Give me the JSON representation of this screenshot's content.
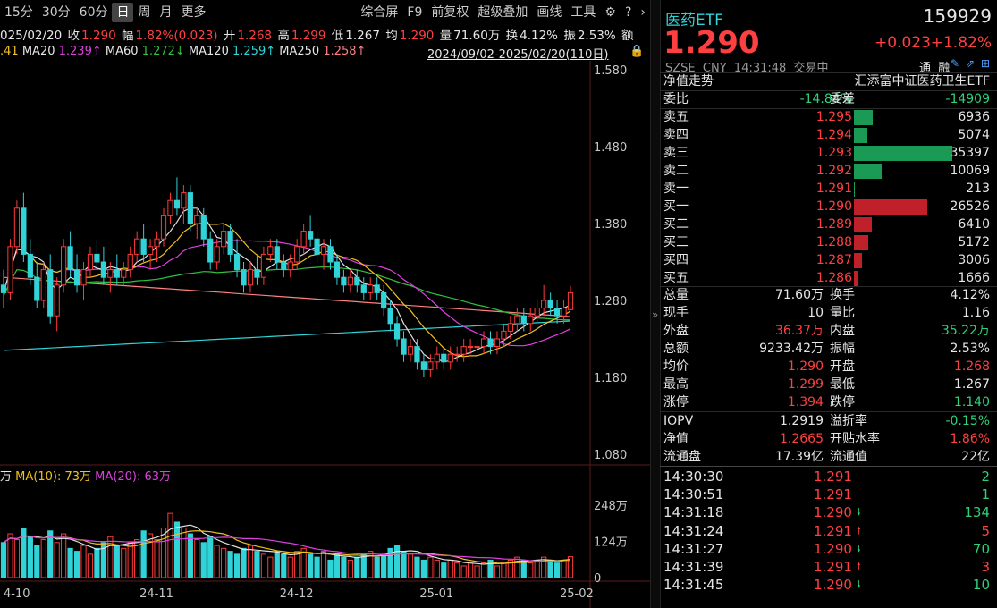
{
  "toolbar": {
    "periods": [
      "15分",
      "30分",
      "60分",
      "日",
      "周",
      "月",
      "更多"
    ],
    "active": "日",
    "tools": [
      "综合屏",
      "F9",
      "前复权",
      "超级叠加",
      "画线",
      "工具"
    ]
  },
  "ohlc": {
    "date": "025/02/20",
    "close_label": "收",
    "close": "1.290",
    "amp_label": "幅",
    "amp": "1.82%(0.023)",
    "open_label": "开",
    "open": "1.268",
    "high_label": "高",
    "high": "1.299",
    "low_label": "低",
    "low": "1.267",
    "avg_label": "均",
    "avg": "1.290",
    "vol_label": "量",
    "vol": "71.60万",
    "turn_label": "换",
    "turn": "4.12%",
    "swing_label": "振",
    "swing": "2.53%",
    "extra": "额"
  },
  "ma": {
    "ma10": ".41",
    "ma20_label": "MA20",
    "ma20": "1.239↑",
    "ma60_label": "MA60",
    "ma60": "1.272↓",
    "ma120_label": "MA120",
    "ma120": "1.259↑",
    "ma250_label": "MA250",
    "ma250": "1.258↑",
    "range": "2024/09/02-2025/02/20(110日)",
    "colors": {
      "ma5": "#e0e0e0",
      "ma10": "#f0c020",
      "ma20": "#e040e0",
      "ma60": "#30c040",
      "ma120": "#2fd3d8",
      "ma250": "#ff8080"
    }
  },
  "price_axis": [
    "1.580",
    "1.480",
    "1.380",
    "1.280",
    "1.180",
    "1.080"
  ],
  "vol_axis": [
    "248万",
    "124万",
    "0"
  ],
  "vol_legend": {
    "prefix": "万",
    "ma10": "MA(10): 73万",
    "ma20": "MA(20): 63万"
  },
  "date_axis": [
    "4-10",
    "24-11",
    "24-12",
    "25-01",
    "25-02"
  ],
  "header": {
    "name": "医药ETF",
    "code": "159929",
    "price": "1.290",
    "change": "+0.023",
    "pct": "+1.82%",
    "meta": "SZSE  CNY  14:31:48  交易中",
    "tags": "通  融"
  },
  "nav_row": {
    "left": "净值走势",
    "right": "汇添富中证医药卫生ETF"
  },
  "ratio": {
    "label1": "委比",
    "v1": "-14.84%",
    "label2": "委差",
    "v2": "-14909"
  },
  "asks": [
    {
      "label": "卖五",
      "price": "1.295",
      "vol": "6936",
      "w": 21
    },
    {
      "label": "卖四",
      "price": "1.294",
      "vol": "5074",
      "w": 15
    },
    {
      "label": "卖三",
      "price": "1.293",
      "vol": "35397",
      "w": 110
    },
    {
      "label": "卖二",
      "price": "1.292",
      "vol": "10069",
      "w": 31
    },
    {
      "label": "卖一",
      "price": "1.291",
      "vol": "213",
      "w": 1
    }
  ],
  "bids": [
    {
      "label": "买一",
      "price": "1.290",
      "vol": "26526",
      "w": 82
    },
    {
      "label": "买二",
      "price": "1.289",
      "vol": "6410",
      "w": 20
    },
    {
      "label": "买三",
      "price": "1.288",
      "vol": "5172",
      "w": 16
    },
    {
      "label": "买四",
      "price": "1.287",
      "vol": "3006",
      "w": 9
    },
    {
      "label": "买五",
      "price": "1.286",
      "vol": "1666",
      "w": 5
    }
  ],
  "quote": [
    [
      "总量",
      "71.60万",
      "w",
      "换手",
      "4.12%",
      "w"
    ],
    [
      "现手",
      "10",
      "w",
      "量比",
      "1.16",
      "w"
    ],
    [
      "外盘",
      "36.37万",
      "r",
      "内盘",
      "35.22万",
      "g"
    ],
    [
      "总额",
      "9233.42万",
      "w",
      "振幅",
      "2.53%",
      "w"
    ],
    [
      "均价",
      "1.290",
      "r",
      "开盘",
      "1.268",
      "r"
    ],
    [
      "最高",
      "1.299",
      "r",
      "最低",
      "1.267",
      "w"
    ],
    [
      "涨停",
      "1.394",
      "r",
      "跌停",
      "1.140",
      "g"
    ]
  ],
  "fund": [
    [
      "IOPV",
      "1.2919",
      "w",
      "溢折率",
      "-0.15%",
      "g"
    ],
    [
      "净值",
      "1.2665",
      "r",
      "开贴水率",
      "1.86%",
      "r"
    ],
    [
      "流通盘",
      "17.39亿",
      "w",
      "流通值",
      "22亿",
      "w"
    ]
  ],
  "ticks": [
    {
      "time": "14:30:30",
      "price": "1.291",
      "dir": "",
      "vol": "2",
      "vc": "g"
    },
    {
      "time": "14:30:51",
      "price": "1.291",
      "dir": "",
      "vol": "1",
      "vc": "g"
    },
    {
      "time": "14:31:18",
      "price": "1.290",
      "dir": "down",
      "vol": "134",
      "vc": "g"
    },
    {
      "time": "14:31:24",
      "price": "1.291",
      "dir": "up",
      "vol": "5",
      "vc": "r"
    },
    {
      "time": "14:31:27",
      "price": "1.290",
      "dir": "down",
      "vol": "70",
      "vc": "g"
    },
    {
      "time": "14:31:39",
      "price": "1.291",
      "dir": "up",
      "vol": "3",
      "vc": "r"
    },
    {
      "time": "14:31:45",
      "price": "1.290",
      "dir": "down",
      "vol": "10",
      "vc": "g"
    }
  ],
  "chart_data": {
    "type": "candlestick",
    "ylim": [
      1.08,
      1.58
    ],
    "candles": [
      [
        1.3,
        1.32,
        1.27,
        1.29
      ],
      [
        1.29,
        1.36,
        1.28,
        1.35
      ],
      [
        1.35,
        1.41,
        1.34,
        1.4
      ],
      [
        1.4,
        1.42,
        1.33,
        1.34
      ],
      [
        1.34,
        1.36,
        1.3,
        1.31
      ],
      [
        1.31,
        1.33,
        1.27,
        1.28
      ],
      [
        1.28,
        1.33,
        1.27,
        1.32
      ],
      [
        1.32,
        1.34,
        1.25,
        1.26
      ],
      [
        1.26,
        1.31,
        1.24,
        1.3
      ],
      [
        1.3,
        1.36,
        1.29,
        1.35
      ],
      [
        1.35,
        1.37,
        1.31,
        1.32
      ],
      [
        1.32,
        1.34,
        1.29,
        1.3
      ],
      [
        1.3,
        1.33,
        1.28,
        1.32
      ],
      [
        1.32,
        1.35,
        1.31,
        1.34
      ],
      [
        1.34,
        1.36,
        1.32,
        1.33
      ],
      [
        1.33,
        1.35,
        1.3,
        1.31
      ],
      [
        1.31,
        1.33,
        1.29,
        1.32
      ],
      [
        1.32,
        1.34,
        1.3,
        1.31
      ],
      [
        1.31,
        1.33,
        1.3,
        1.32
      ],
      [
        1.32,
        1.35,
        1.31,
        1.34
      ],
      [
        1.34,
        1.37,
        1.33,
        1.36
      ],
      [
        1.36,
        1.38,
        1.33,
        1.34
      ],
      [
        1.34,
        1.36,
        1.32,
        1.35
      ],
      [
        1.35,
        1.37,
        1.33,
        1.36
      ],
      [
        1.36,
        1.4,
        1.35,
        1.39
      ],
      [
        1.39,
        1.42,
        1.38,
        1.41
      ],
      [
        1.41,
        1.44,
        1.39,
        1.4
      ],
      [
        1.4,
        1.43,
        1.38,
        1.42
      ],
      [
        1.42,
        1.43,
        1.37,
        1.38
      ],
      [
        1.38,
        1.4,
        1.36,
        1.39
      ],
      [
        1.39,
        1.4,
        1.35,
        1.36
      ],
      [
        1.36,
        1.37,
        1.32,
        1.33
      ],
      [
        1.33,
        1.36,
        1.32,
        1.35
      ],
      [
        1.35,
        1.38,
        1.34,
        1.37
      ],
      [
        1.37,
        1.38,
        1.33,
        1.34
      ],
      [
        1.34,
        1.36,
        1.31,
        1.32
      ],
      [
        1.32,
        1.33,
        1.29,
        1.3
      ],
      [
        1.3,
        1.33,
        1.29,
        1.32
      ],
      [
        1.32,
        1.34,
        1.3,
        1.31
      ],
      [
        1.31,
        1.35,
        1.3,
        1.34
      ],
      [
        1.34,
        1.36,
        1.33,
        1.35
      ],
      [
        1.35,
        1.36,
        1.32,
        1.33
      ],
      [
        1.33,
        1.34,
        1.31,
        1.32
      ],
      [
        1.32,
        1.34,
        1.31,
        1.33
      ],
      [
        1.33,
        1.36,
        1.32,
        1.35
      ],
      [
        1.35,
        1.38,
        1.34,
        1.37
      ],
      [
        1.37,
        1.39,
        1.35,
        1.36
      ],
      [
        1.36,
        1.37,
        1.33,
        1.34
      ],
      [
        1.34,
        1.36,
        1.32,
        1.35
      ],
      [
        1.35,
        1.36,
        1.32,
        1.33
      ],
      [
        1.33,
        1.34,
        1.3,
        1.31
      ],
      [
        1.31,
        1.32,
        1.29,
        1.3
      ],
      [
        1.3,
        1.32,
        1.29,
        1.31
      ],
      [
        1.31,
        1.32,
        1.29,
        1.3
      ],
      [
        1.3,
        1.31,
        1.28,
        1.29
      ],
      [
        1.29,
        1.31,
        1.28,
        1.3
      ],
      [
        1.3,
        1.31,
        1.28,
        1.29
      ],
      [
        1.29,
        1.3,
        1.26,
        1.27
      ],
      [
        1.27,
        1.28,
        1.24,
        1.25
      ],
      [
        1.25,
        1.26,
        1.22,
        1.23
      ],
      [
        1.23,
        1.24,
        1.2,
        1.21
      ],
      [
        1.21,
        1.23,
        1.2,
        1.22
      ],
      [
        1.22,
        1.23,
        1.19,
        1.2
      ],
      [
        1.2,
        1.21,
        1.18,
        1.19
      ],
      [
        1.19,
        1.21,
        1.18,
        1.2
      ],
      [
        1.2,
        1.22,
        1.19,
        1.21
      ],
      [
        1.21,
        1.22,
        1.19,
        1.2
      ],
      [
        1.2,
        1.22,
        1.19,
        1.21
      ],
      [
        1.21,
        1.22,
        1.2,
        1.21
      ],
      [
        1.21,
        1.23,
        1.2,
        1.22
      ],
      [
        1.22,
        1.23,
        1.21,
        1.22
      ],
      [
        1.22,
        1.23,
        1.21,
        1.22
      ],
      [
        1.22,
        1.24,
        1.21,
        1.23
      ],
      [
        1.23,
        1.24,
        1.21,
        1.22
      ],
      [
        1.22,
        1.24,
        1.21,
        1.23
      ],
      [
        1.23,
        1.25,
        1.22,
        1.24
      ],
      [
        1.24,
        1.26,
        1.23,
        1.25
      ],
      [
        1.25,
        1.27,
        1.24,
        1.26
      ],
      [
        1.26,
        1.27,
        1.24,
        1.25
      ],
      [
        1.25,
        1.27,
        1.24,
        1.26
      ],
      [
        1.26,
        1.28,
        1.25,
        1.27
      ],
      [
        1.27,
        1.3,
        1.26,
        1.28
      ],
      [
        1.28,
        1.29,
        1.26,
        1.27
      ],
      [
        1.27,
        1.28,
        1.25,
        1.26
      ],
      [
        1.26,
        1.28,
        1.25,
        1.27
      ],
      [
        1.268,
        1.299,
        1.267,
        1.29
      ]
    ],
    "volumes": [
      120,
      150,
      130,
      170,
      140,
      110,
      130,
      160,
      120,
      150,
      100,
      90,
      110,
      80,
      100,
      120,
      140,
      110,
      100,
      120,
      130,
      160,
      150,
      130,
      170,
      220,
      190,
      170,
      150,
      130,
      120,
      140,
      110,
      100,
      90,
      80,
      100,
      110,
      90,
      80,
      70,
      90,
      80,
      70,
      90,
      100,
      80,
      70,
      90,
      60,
      80,
      70,
      60,
      70,
      80,
      90,
      70,
      80,
      100,
      110,
      90,
      80,
      70,
      60,
      70,
      60,
      50,
      60,
      50,
      40,
      50,
      40,
      50,
      60,
      40,
      50,
      60,
      70,
      60,
      50,
      60,
      70,
      60,
      50,
      60,
      71.6
    ],
    "vol_ylim": [
      0,
      248
    ]
  }
}
